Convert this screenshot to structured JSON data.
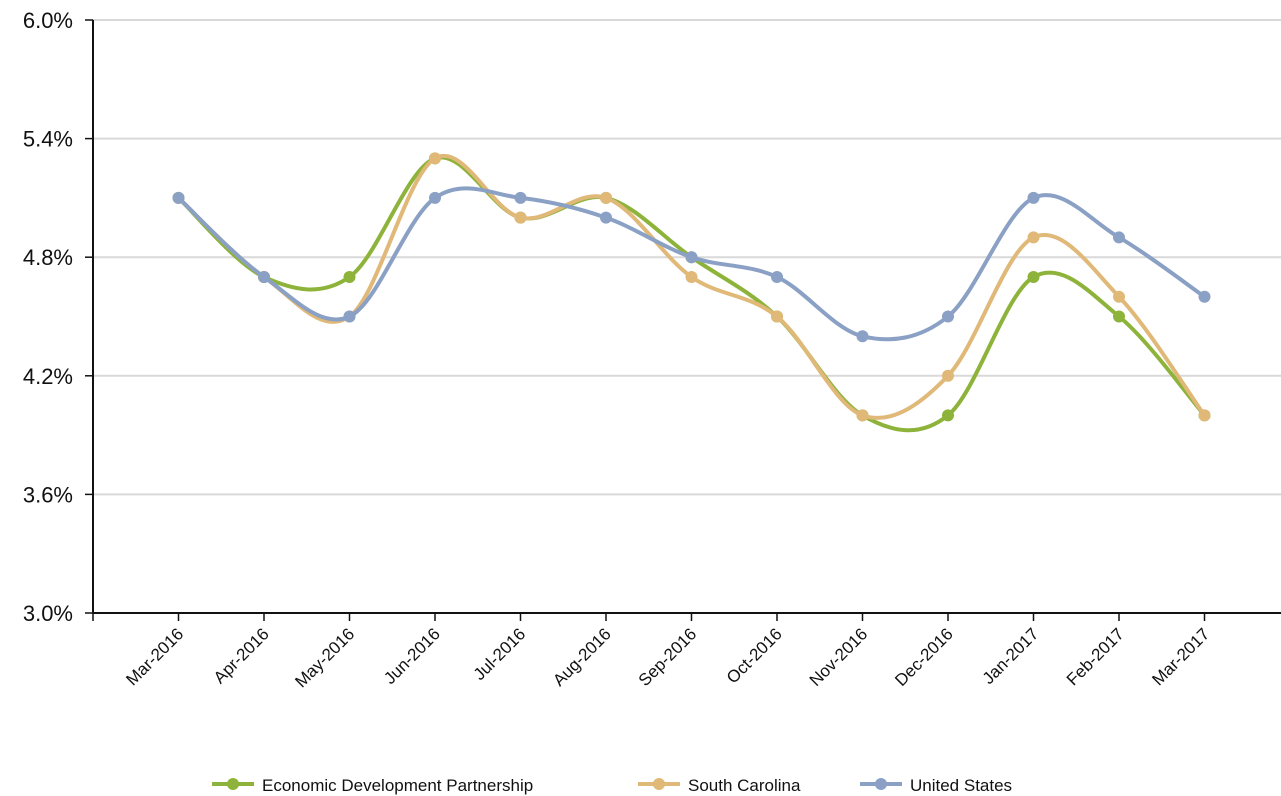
{
  "chart_data": {
    "type": "line",
    "categories": [
      "Mar-2016",
      "Apr-2016",
      "May-2016",
      "Jun-2016",
      "Jul-2016",
      "Aug-2016",
      "Sep-2016",
      "Oct-2016",
      "Nov-2016",
      "Dec-2016",
      "Jan-2017",
      "Feb-2017",
      "Mar-2017"
    ],
    "series": [
      {
        "name": "Economic Development Partnership",
        "color": "#8db33a",
        "values": [
          5.1,
          4.7,
          4.7,
          5.3,
          5.0,
          5.1,
          4.8,
          4.5,
          4.0,
          4.0,
          4.7,
          4.5,
          4.0
        ]
      },
      {
        "name": "South Carolina",
        "color": "#e0b878",
        "values": [
          5.1,
          4.7,
          4.5,
          5.3,
          5.0,
          5.1,
          4.7,
          4.5,
          4.0,
          4.2,
          4.9,
          4.6,
          4.0
        ]
      },
      {
        "name": "United States",
        "color": "#8aa0c4",
        "values": [
          5.1,
          4.7,
          4.5,
          5.1,
          5.1,
          5.0,
          4.8,
          4.7,
          4.4,
          4.5,
          5.1,
          4.9,
          4.6
        ]
      }
    ],
    "ylim": [
      3.0,
      6.0
    ],
    "yticks": [
      {
        "value": 3.0,
        "label": "3.0%"
      },
      {
        "value": 3.6,
        "label": "3.6%"
      },
      {
        "value": 4.2,
        "label": "4.2%"
      },
      {
        "value": 4.8,
        "label": "4.8%"
      },
      {
        "value": 5.4,
        "label": "5.4%"
      },
      {
        "value": 6.0,
        "label": "6.0%"
      }
    ],
    "grid": true,
    "legend": "bottom"
  }
}
